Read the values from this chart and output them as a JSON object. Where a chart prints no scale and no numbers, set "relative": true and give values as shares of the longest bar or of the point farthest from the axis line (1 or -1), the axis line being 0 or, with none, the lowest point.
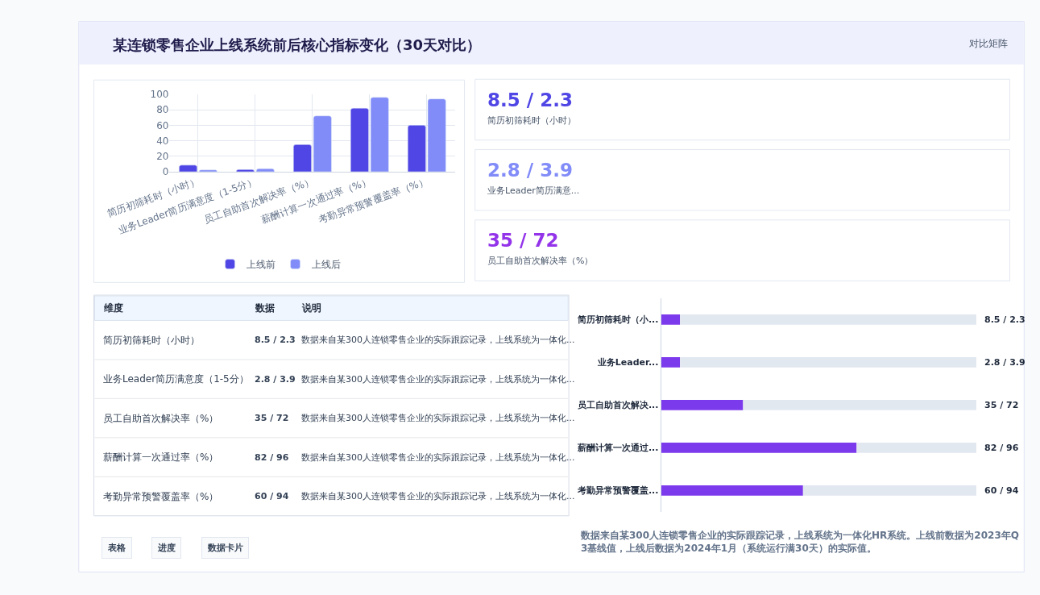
{
  "chart_data": [
    {
      "type": "other",
      "title": "某连锁零售企业上线系统前后核心指标变化（30天对比）",
      "annotations": [
        "对比矩阵"
      ]
    },
    {
      "type": "bar",
      "categories": [
        "简历初筛耗时（小时）",
        "业务Leader简历满意度（1-5分）",
        "员工自助首次解决率（%）",
        "薪酬计算一次通过率（%）",
        "考勤异常预警覆盖率（%）"
      ],
      "series": [
        {
          "name": "上线前",
          "color": "#4f46e5",
          "values": [
            8.5,
            2.8,
            35,
            82,
            60
          ]
        },
        {
          "name": "上线后",
          "color": "#818cf8",
          "values": [
            2.3,
            3.9,
            72,
            96,
            94
          ]
        }
      ],
      "ylim": [
        0,
        100
      ],
      "yticks": [
        0,
        20,
        40,
        60,
        80,
        100
      ],
      "grid": true,
      "legend": "bottom"
    },
    {
      "type": "other",
      "annotations": [
        "8.5 / 2.3",
        "简历初筛耗时（小时）",
        "2.8 / 3.9",
        "业务Leader简历满意...",
        "35 / 72",
        "员工自助首次解决率（%）"
      ],
      "colors": [
        "#4f46e5",
        "#818cf8",
        "#9333ea"
      ]
    },
    {
      "type": "other",
      "categories": [
        "维度",
        "数据",
        "说明"
      ],
      "annotations": [
        "简历初筛耗时（小时）",
        "8.5 / 2.3",
        "数据来自某300人连锁零售企业的实际跟踪记录，上线系统为一体化...",
        "业务Leader简历满意度（1-5分）",
        "2.8 / 3.9",
        "数据来自某300人连锁零售企业的实际跟踪记录，上线系统为一体化...",
        "员工自助首次解决率（%）",
        "35 / 72",
        "数据来自某300人连锁零售企业的实际跟踪记录，上线系统为一体化...",
        "薪酬计算一次通过率（%）",
        "82 / 96",
        "数据来自某300人连锁零售企业的实际跟踪记录，上线系统为一体化...",
        "考勤异常预警覆盖率（%）",
        "60 / 94",
        "数据来自某300人连锁零售企业的实际跟踪记录，上线系统为一体化..."
      ]
    },
    {
      "type": "bar",
      "orientation": "horizontal",
      "relative": true,
      "stacked": true,
      "categories": [
        "简历初筛耗时（小...",
        "业务Leader...",
        "员工自助首次解决...",
        "薪酬计算一次通过...",
        "考勤异常预警覆盖..."
      ],
      "series": [
        {
          "color": "#7c3aed",
          "values": [
            0.06,
            0.06,
            0.26,
            0.62,
            0.45
          ]
        },
        {
          "color": "#e2e8f0",
          "values": [
            0.94,
            0.94,
            0.74,
            0.38,
            0.55
          ]
        }
      ],
      "annotations": [
        "8.5 / 2.3",
        "2.8 / 3.9",
        "35 / 72",
        "82 / 96",
        "60 / 94",
        "数据来自某300人连锁零售企业的实际跟踪记录，上线系统为一体化HR系统。上线前数据为2023年Q3基线值，上线后数据为2024年1月（系统运行满30天）的实际值。"
      ]
    },
    {
      "type": "other",
      "annotations": [
        "表格",
        "进度",
        "数据卡片"
      ]
    }
  ]
}
